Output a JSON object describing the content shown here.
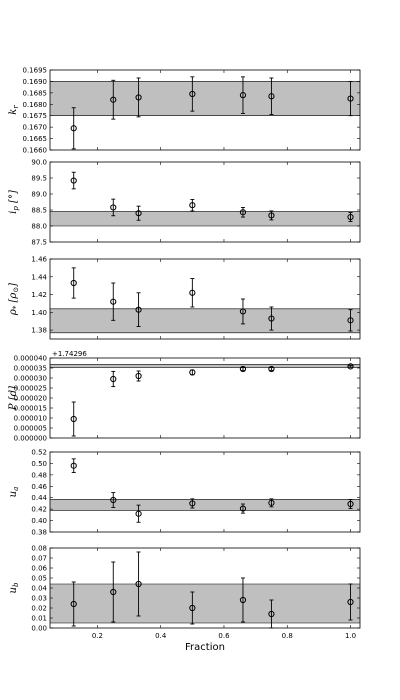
{
  "chart_data": {
    "type": "scatter",
    "xlabel": "Fraction",
    "xlim": [
      0.05,
      1.03
    ],
    "xticks": [
      0.2,
      0.4,
      0.6,
      0.8,
      1.0
    ],
    "xtick_labels": [
      "0.2",
      "0.4",
      "0.6",
      "0.8",
      "1.0"
    ],
    "x": [
      0.125,
      0.25,
      0.33,
      0.5,
      0.66,
      0.75,
      1.0
    ],
    "panels": [
      {
        "ylabel": "k_r",
        "ylim": [
          0.166,
          0.1695
        ],
        "yticks": [
          0.166,
          0.1665,
          0.167,
          0.1675,
          0.168,
          0.1685,
          0.169,
          0.1695
        ],
        "ytick_labels": [
          "0.1660",
          "0.1665",
          "0.1670",
          "0.1675",
          "0.1680",
          "0.1685",
          "0.1690",
          "0.1695"
        ],
        "band": [
          0.1675,
          0.169
        ],
        "values": [
          0.16695,
          0.1682,
          0.1683,
          0.16845,
          0.1684,
          0.16835,
          0.16825
        ],
        "errors": [
          0.0009,
          0.00085,
          0.00085,
          0.00075,
          0.0008,
          0.0008,
          0.00075
        ]
      },
      {
        "ylabel": "i_p [°]",
        "ylim": [
          87.5,
          90.0
        ],
        "yticks": [
          87.5,
          88.0,
          88.5,
          89.0,
          89.5,
          90.0
        ],
        "ytick_labels": [
          "87.5",
          "88.0",
          "88.5",
          "89.0",
          "89.5",
          "90.0"
        ],
        "band": [
          88.0,
          88.45
        ],
        "values": [
          89.42,
          88.58,
          88.4,
          88.65,
          88.43,
          88.33,
          88.28
        ],
        "errors": [
          0.26,
          0.26,
          0.22,
          0.18,
          0.15,
          0.14,
          0.14
        ]
      },
      {
        "ylabel": "ρ* [ρ⊙]",
        "ylim": [
          1.37,
          1.46
        ],
        "yticks": [
          1.38,
          1.4,
          1.42,
          1.44,
          1.46
        ],
        "ytick_labels": [
          "1.38",
          "1.40",
          "1.42",
          "1.44",
          "1.46"
        ],
        "band": [
          1.377,
          1.404
        ],
        "values": [
          1.433,
          1.412,
          1.403,
          1.422,
          1.401,
          1.393,
          1.391
        ],
        "errors": [
          0.017,
          0.021,
          0.019,
          0.016,
          0.014,
          0.013,
          0.012
        ]
      },
      {
        "ylabel": "P [d]",
        "offset": "+1.74296",
        "ylim": [
          0.0,
          4e-05
        ],
        "yticks": [
          0.0,
          5e-06,
          1e-05,
          1.5e-05,
          2e-05,
          2.5e-05,
          3e-05,
          3.5e-05,
          4e-05
        ],
        "ytick_labels": [
          "0.000000",
          "0.000005",
          "0.000010",
          "0.000015",
          "0.000020",
          "0.000025",
          "0.000030",
          "0.000035",
          "0.000040"
        ],
        "band": [
          3.53e-05,
          3.68e-05
        ],
        "values": [
          9.5e-06,
          2.95e-05,
          3.1e-05,
          3.28e-05,
          3.45e-05,
          3.45e-05,
          3.58e-05
        ],
        "errors": [
          8.5e-06,
          3.8e-06,
          2.5e-06,
          1.2e-06,
          7e-07,
          7e-07,
          4e-07
        ]
      },
      {
        "ylabel": "u_a",
        "ylim": [
          0.38,
          0.52
        ],
        "yticks": [
          0.38,
          0.4,
          0.42,
          0.44,
          0.46,
          0.48,
          0.5,
          0.52
        ],
        "ytick_labels": [
          "0.38",
          "0.40",
          "0.42",
          "0.44",
          "0.46",
          "0.48",
          "0.50",
          "0.52"
        ],
        "band": [
          0.418,
          0.437
        ],
        "values": [
          0.496,
          0.436,
          0.412,
          0.43,
          0.421,
          0.431,
          0.429
        ],
        "errors": [
          0.012,
          0.013,
          0.015,
          0.008,
          0.008,
          0.007,
          0.008
        ]
      },
      {
        "ylabel": "u_b",
        "ylim": [
          0.0,
          0.08
        ],
        "yticks": [
          0.0,
          0.01,
          0.02,
          0.03,
          0.04,
          0.05,
          0.06,
          0.07,
          0.08
        ],
        "ytick_labels": [
          "0.00",
          "0.01",
          "0.02",
          "0.03",
          "0.04",
          "0.05",
          "0.06",
          "0.07",
          "0.08"
        ],
        "band": [
          0.005,
          0.044
        ],
        "values": [
          0.024,
          0.036,
          0.044,
          0.02,
          0.028,
          0.014,
          0.026
        ],
        "errors": [
          0.022,
          0.03,
          0.032,
          0.016,
          0.022,
          0.014,
          0.018
        ]
      }
    ]
  }
}
